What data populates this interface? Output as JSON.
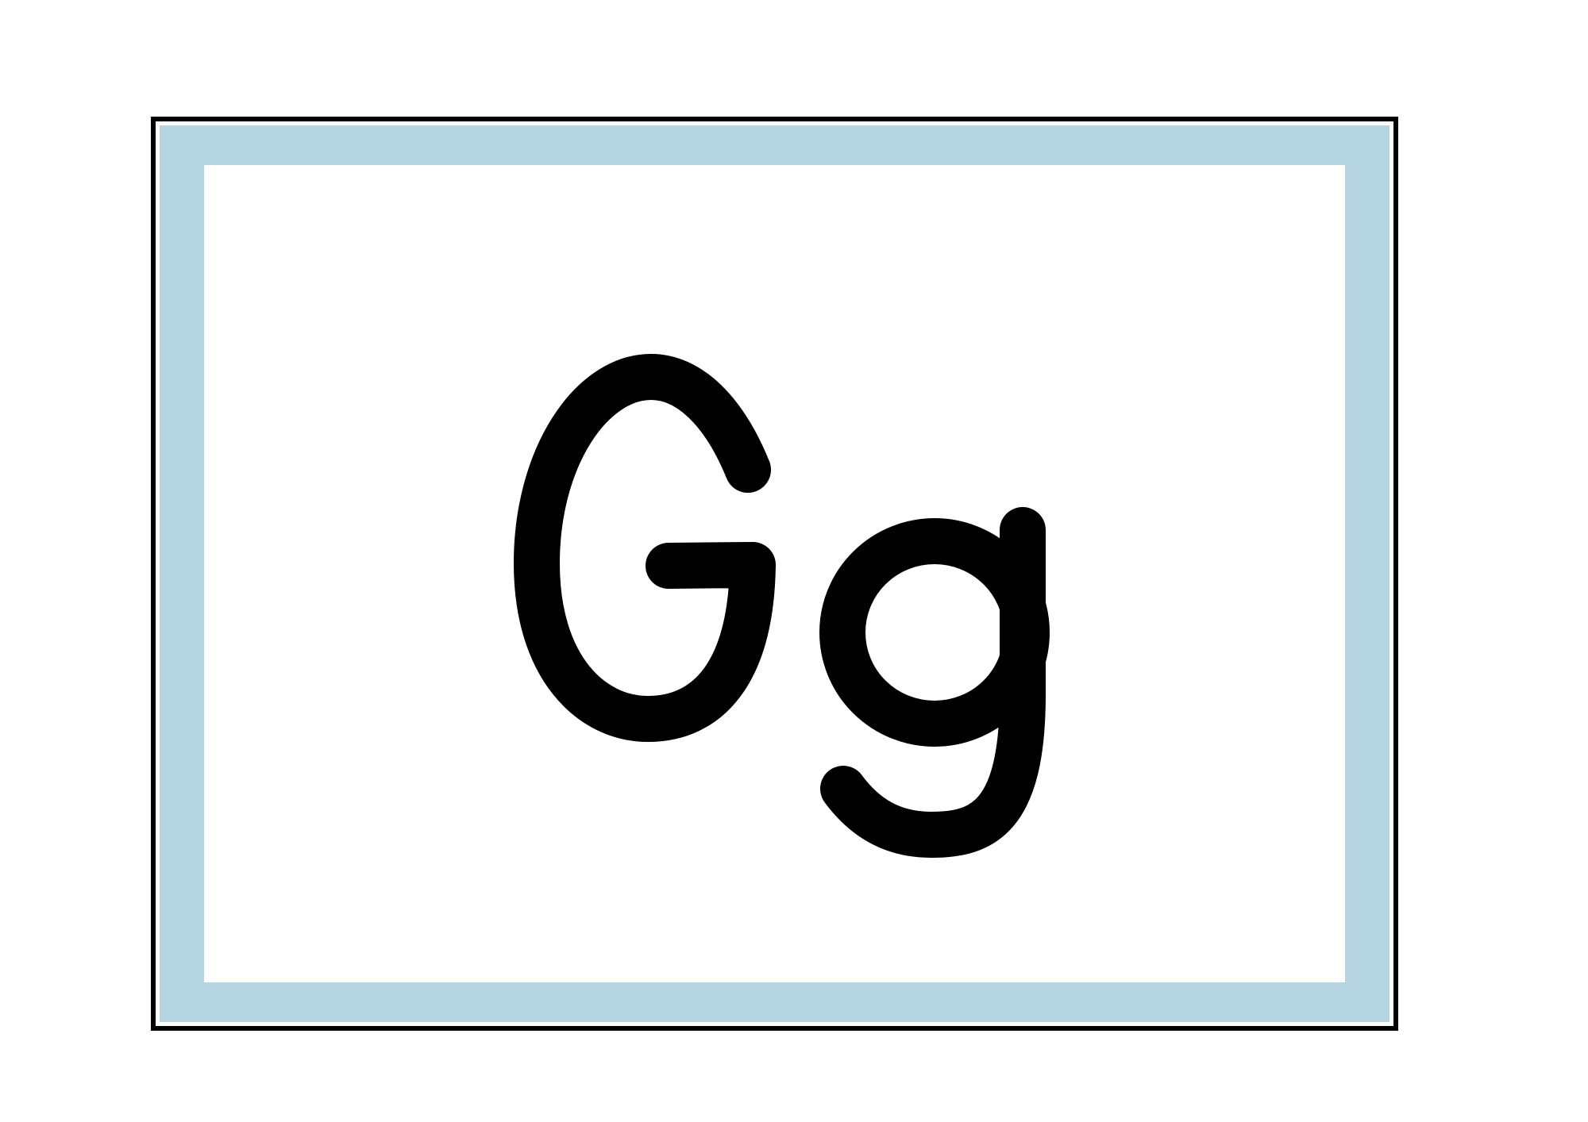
{
  "card": {
    "letters": "Gg",
    "frame_color": "#b4d5e1",
    "border_color": "#000000",
    "letter_color": "#000000"
  }
}
